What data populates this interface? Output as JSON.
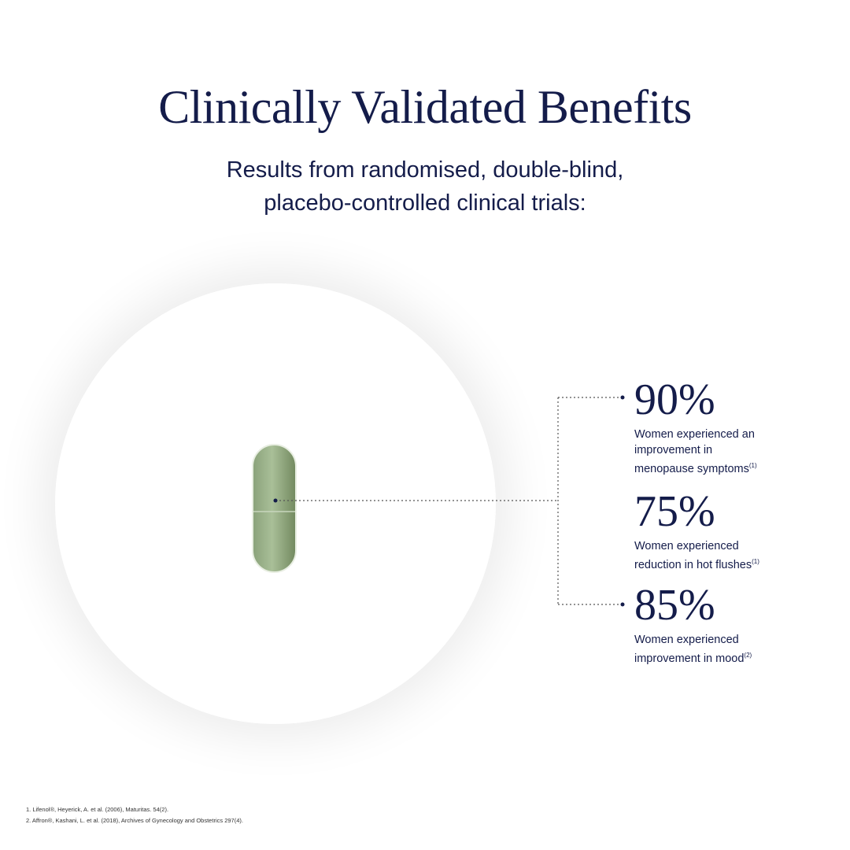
{
  "header": {
    "title": "Clinically Validated Benefits",
    "subtitle_lines": [
      "Results from randomised, double-blind,",
      "placebo-controlled clinical trials:"
    ]
  },
  "stats": [
    {
      "value": "90%",
      "lines": [
        "Women experienced an",
        "improvement in",
        "menopause symptoms"
      ],
      "note": "(1)"
    },
    {
      "value": "75%",
      "lines": [
        "Women experienced",
        "reduction in hot flushes"
      ],
      "note": "(1)"
    },
    {
      "value": "85%",
      "lines": [
        "Women experienced",
        "improvement in mood"
      ],
      "note": "(2)"
    }
  ],
  "footnotes": [
    "1. Lifenol®, Heyerick, A. et al. (2006), Maturitas. 54(2).",
    "2. Affron®, Kashani, L. et al. (2018), Archives of Gynecology and Obstetrics 297(4)."
  ]
}
